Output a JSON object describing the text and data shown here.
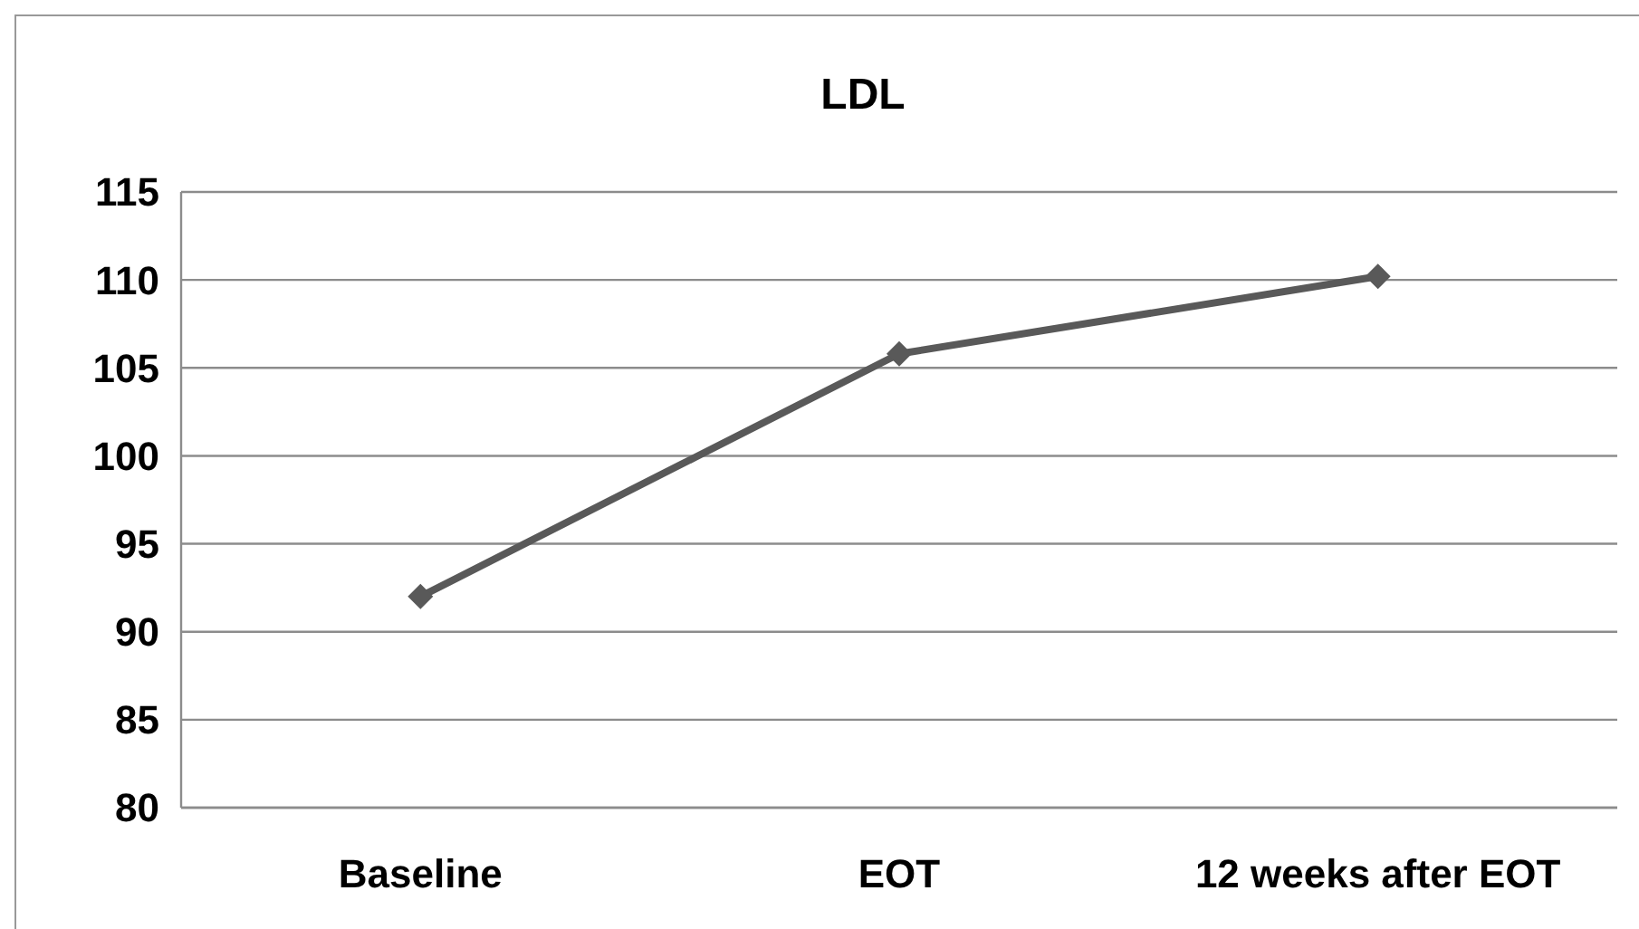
{
  "chart_data": {
    "type": "line",
    "title": "LDL",
    "categories": [
      "Baseline",
      "EOT",
      "12 weeks after EOT"
    ],
    "series": [
      {
        "color": "#595959",
        "values": [
          92,
          105.8,
          110.2
        ]
      }
    ],
    "ylim": [
      80,
      115
    ],
    "yticks": [
      80,
      85,
      90,
      95,
      100,
      105,
      110,
      115
    ],
    "grid": "y",
    "marker": "diamond",
    "line_style": "solid"
  }
}
